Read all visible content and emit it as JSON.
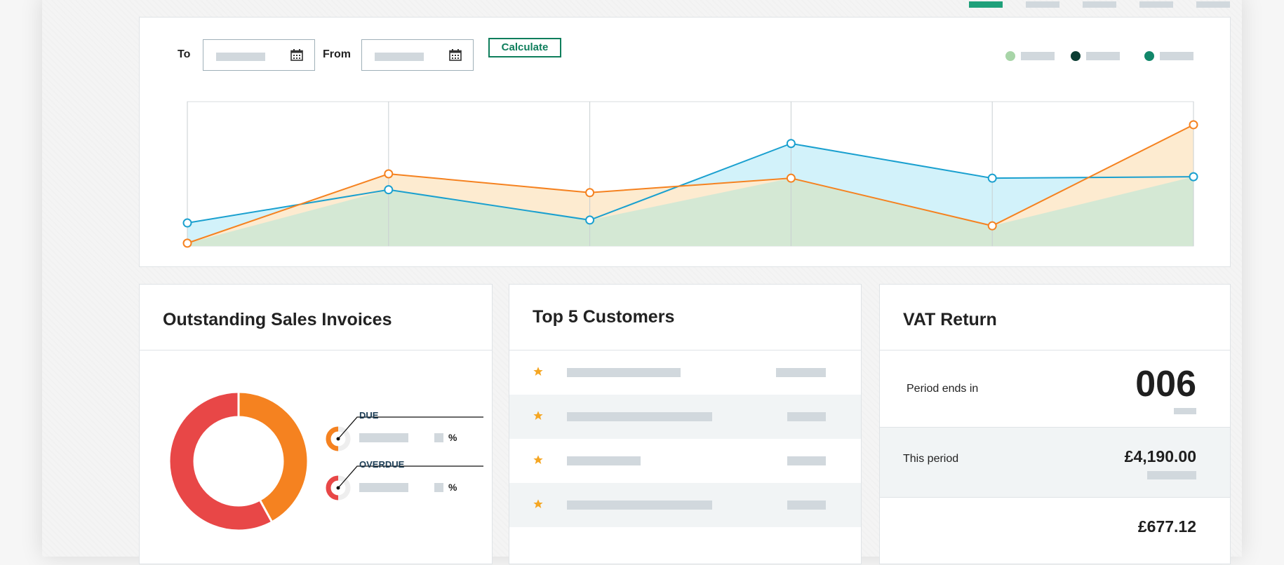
{
  "colors": {
    "accent": "#1fa07a",
    "orange": "#f58220",
    "blue": "#1aa0cf",
    "red": "#e84747",
    "green_fill": "#d4e8d4",
    "orange_fill": "#fdebd0",
    "blue_fill": "#d2f2fa"
  },
  "filters": {
    "to_label": "To",
    "from_label": "From",
    "calculate_label": "Calculate",
    "calendar_icon": "calendar-icon"
  },
  "legend": {
    "dot_colors": [
      "#a8d5a8",
      "#0c3d33",
      "#12876a"
    ]
  },
  "chart_data": {
    "type": "area",
    "x": [
      0,
      1,
      2,
      3,
      4,
      5
    ],
    "ylim": [
      0,
      100
    ],
    "grid": true,
    "series": [
      {
        "color": "#1aa0cf",
        "values": [
          16,
          39,
          18,
          71,
          47,
          48
        ]
      },
      {
        "color": "#f58220",
        "values": [
          2,
          50,
          37,
          47,
          14,
          84
        ]
      }
    ]
  },
  "invoices": {
    "title": "Outstanding Sales Invoices",
    "donut": {
      "due": 0.42,
      "overdue": 0.58
    },
    "due_label": "DUE",
    "overdue_label": "OVERDUE",
    "percent_sign": "%"
  },
  "customers": {
    "title": "Top 5 Customers",
    "star_icon": "star-icon"
  },
  "vat": {
    "title": "VAT Return",
    "period_label": "Period ends in",
    "period_value": "006",
    "this_period_label": "This period",
    "this_period_value": "£4,190.00",
    "next_value_partial": "£677.12"
  }
}
